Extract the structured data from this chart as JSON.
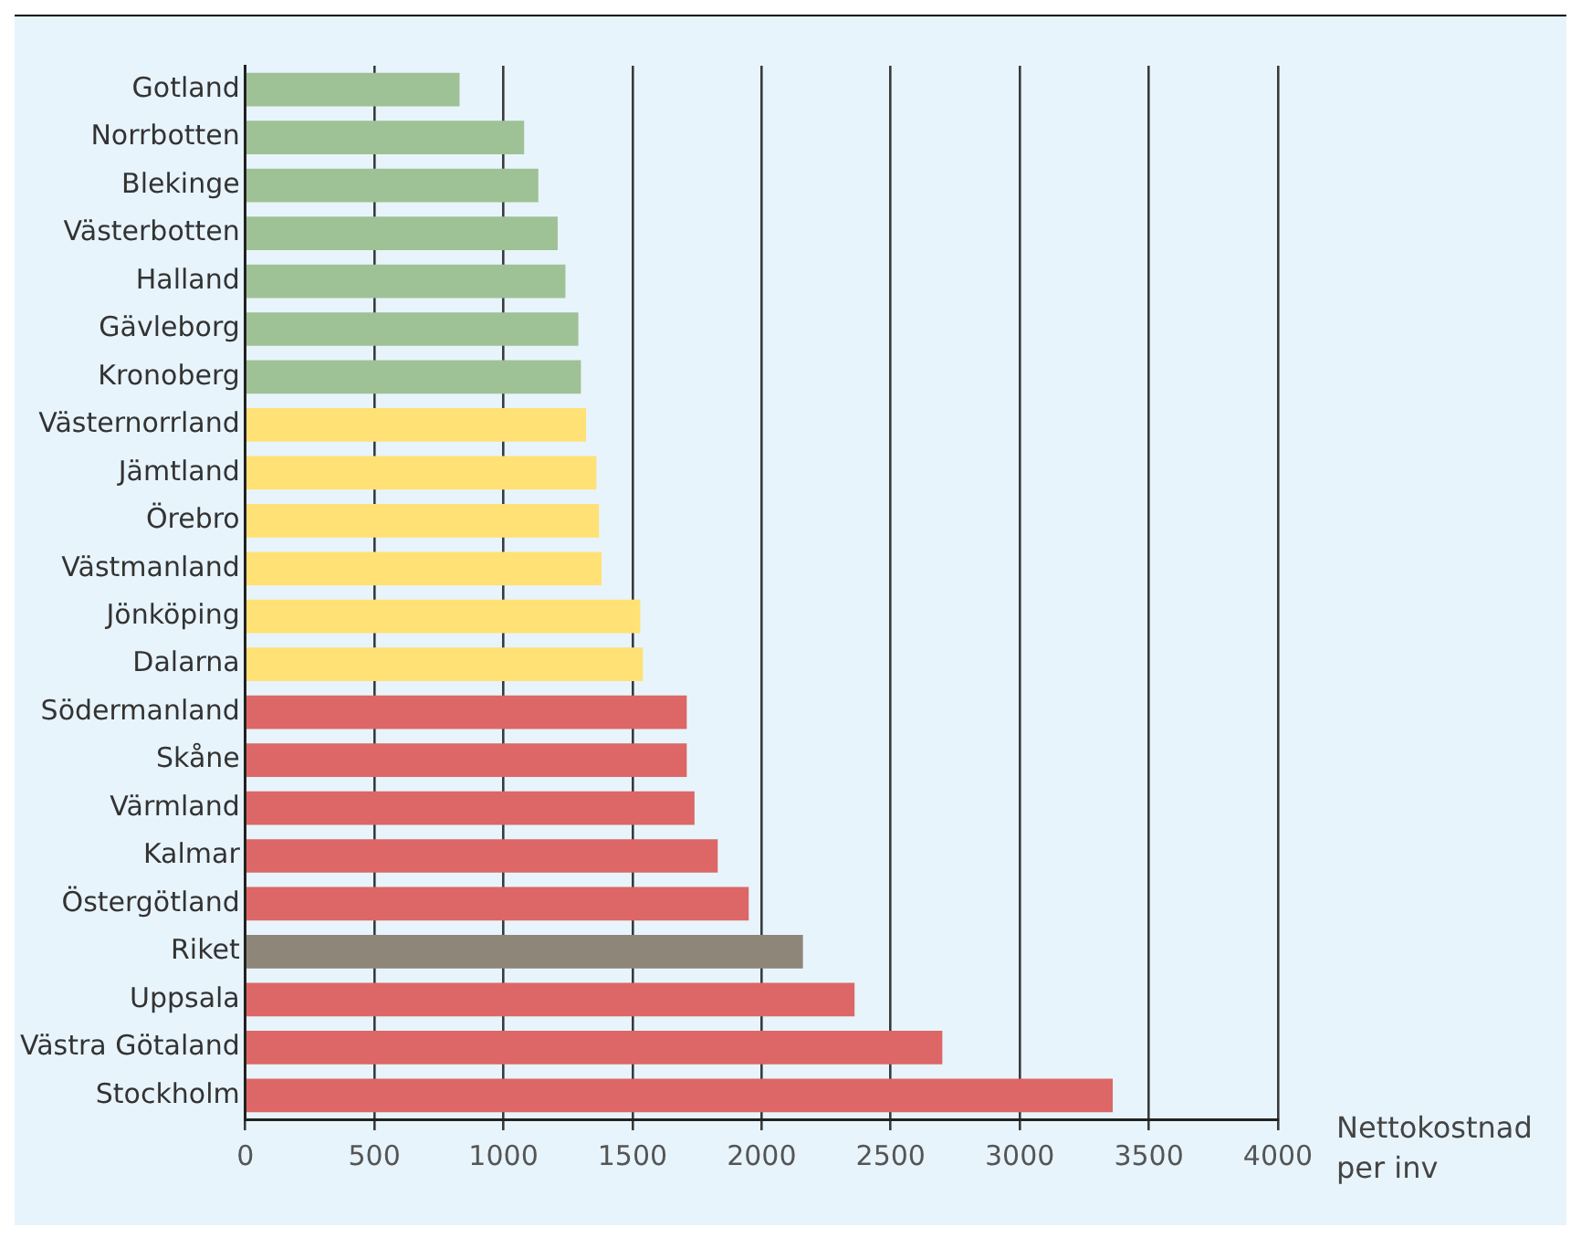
{
  "chart_data": {
    "type": "bar",
    "orientation": "horizontal",
    "xlabel": "Nettokostnad per inv",
    "categories": [
      "Gotland",
      "Norrbotten",
      "Blekinge",
      "Västerbotten",
      "Halland",
      "Gävleborg",
      "Kronoberg",
      "Västernorrland",
      "Jämtland",
      "Örebro",
      "Västmanland",
      "Jönköping",
      "Dalarna",
      "Södermanland",
      "Skåne",
      "Värmland",
      "Kalmar",
      "Östergötland",
      "Riket",
      "Uppsala",
      "Västra Götaland",
      "Stockholm"
    ],
    "values": [
      830,
      1080,
      1135,
      1210,
      1240,
      1290,
      1300,
      1320,
      1360,
      1370,
      1380,
      1530,
      1540,
      1710,
      1710,
      1740,
      1830,
      1950,
      2160,
      2360,
      2700,
      3360
    ],
    "colors": [
      "#9fc196",
      "#9fc196",
      "#9fc196",
      "#9fc196",
      "#9fc196",
      "#9fc196",
      "#9fc196",
      "#ffe175",
      "#ffe175",
      "#ffe175",
      "#ffe175",
      "#ffe175",
      "#ffe175",
      "#dc6766",
      "#dc6766",
      "#dc6766",
      "#dc6766",
      "#dc6766",
      "#8f867a",
      "#dc6766",
      "#dc6766",
      "#dc6766"
    ],
    "xlim": [
      0,
      4000
    ],
    "xticks": [
      0,
      500,
      1000,
      1500,
      2000,
      2500,
      3000,
      3500,
      4000
    ],
    "grid": "x",
    "legend": false
  }
}
